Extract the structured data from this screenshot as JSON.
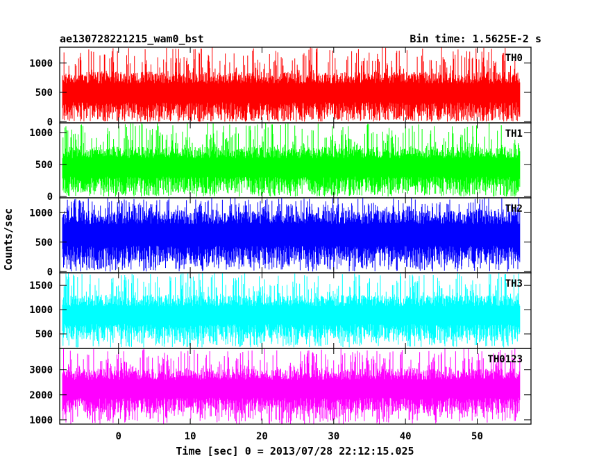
{
  "header": {
    "left": "ae130728221215_wam0_bst",
    "right": "Bin time: 1.5625E-2 s"
  },
  "chart_data": {
    "type": "line",
    "xlabel": "Time [sec] 0 = 2013/07/28 22:12:15.025",
    "ylabel": "Counts/sec",
    "xlim": [
      -8.2,
      57.5
    ],
    "data_x_range": [
      -7.8,
      56.0
    ],
    "x_ticks": [
      0,
      10,
      20,
      30,
      40,
      50
    ],
    "grid": false,
    "panels": [
      {
        "name": "TH0",
        "color": "#ff0000",
        "ylim": [
          -20,
          1270
        ],
        "y_ticks": [
          0,
          500,
          1000
        ],
        "band": [
          50,
          850
        ],
        "spike_low": 0,
        "spike_high": 1270
      },
      {
        "name": "TH1",
        "color": "#00ff00",
        "ylim": [
          -20,
          1150
        ],
        "y_ticks": [
          0,
          500,
          1000
        ],
        "band": [
          60,
          780
        ],
        "spike_low": 0,
        "spike_high": 1150
      },
      {
        "name": "TH2",
        "color": "#0000ff",
        "ylim": [
          -20,
          1250
        ],
        "y_ticks": [
          0,
          500,
          1000
        ],
        "band": [
          120,
          1030
        ],
        "spike_low": 0,
        "spike_high": 1250
      },
      {
        "name": "TH3",
        "color": "#00ffff",
        "ylim": [
          200,
          1760
        ],
        "y_ticks": [
          500,
          1000,
          1500
        ],
        "band": [
          380,
          1300
        ],
        "spike_low": 220,
        "spike_high": 1760
      },
      {
        "name": "TH0123",
        "color": "#ff00ff",
        "ylim": [
          830,
          3850
        ],
        "y_ticks": [
          1000,
          2000,
          3000
        ],
        "band": [
          1250,
          3050
        ],
        "spike_low": 830,
        "spike_high": 3850
      }
    ]
  }
}
